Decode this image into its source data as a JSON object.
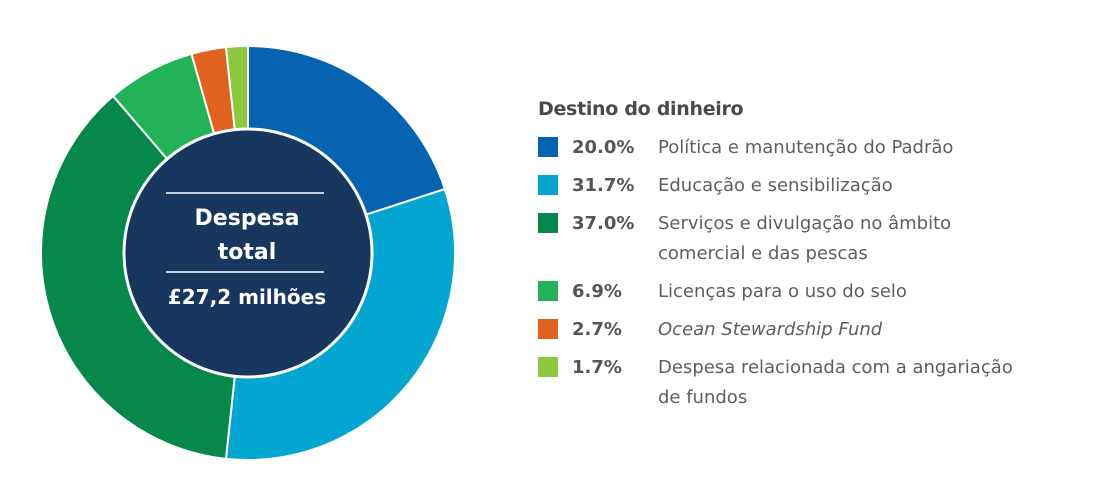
{
  "chart_data": {
    "type": "pie",
    "donut": true,
    "start": "top",
    "direction": "clockwise",
    "center_label": {
      "line1": "Despesa",
      "line2": "total",
      "amount": "£27,2 milhões"
    },
    "center_color": "#17375e",
    "legend_title": "Destino do dinheiro",
    "legend_placement": "right",
    "slices": [
      {
        "value": 20.0,
        "pct_label": "20.0%",
        "label": "Política e manutenção do Padrão",
        "color": "#0563b0",
        "italic": false
      },
      {
        "value": 31.7,
        "pct_label": "31.7%",
        "label": "Educação e sensibilização",
        "color": "#02a6d1",
        "italic": false
      },
      {
        "value": 37.0,
        "pct_label": "37.0%",
        "label": "Serviços e divulgação no âmbito comercial e das pescas",
        "color": "#05884a",
        "italic": false
      },
      {
        "value": 6.9,
        "pct_label": "6.9%",
        "label": "Licenças para o uso do selo",
        "color": "#22b358",
        "italic": false
      },
      {
        "value": 2.7,
        "pct_label": "2.7%",
        "label": "Ocean Stewardship Fund",
        "color": "#e0621e",
        "italic": true
      },
      {
        "value": 1.7,
        "pct_label": "1.7%",
        "label": "Despesa relacionada com a angariação de fundos",
        "color": "#8dc63f",
        "italic": false
      }
    ]
  }
}
